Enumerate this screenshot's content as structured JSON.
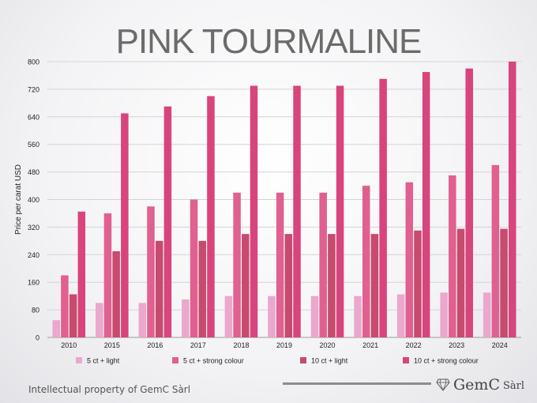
{
  "title": "PINK TOURMALINE",
  "footer": {
    "text": "Intellectual property of GemC Sàrl",
    "logo_name": "GemC",
    "logo_suffix": "Sàrl"
  },
  "chart_data": {
    "type": "bar",
    "ylabel": "Price per carat USD",
    "xlabel": "",
    "ylim": [
      0,
      800
    ],
    "yticks": [
      0,
      80,
      160,
      240,
      320,
      400,
      480,
      560,
      640,
      720,
      800
    ],
    "grid": true,
    "legend_position": "bottom",
    "categories": [
      "2010",
      "2015",
      "2016",
      "2017",
      "2018",
      "2019",
      "2020",
      "2021",
      "2022",
      "2023",
      "2024"
    ],
    "series": [
      {
        "name": "5 ct + light",
        "color": "#e9a8cc",
        "values": [
          50,
          100,
          100,
          110,
          120,
          120,
          120,
          120,
          125,
          130,
          130
        ]
      },
      {
        "name": "5 ct + strong colour",
        "color": "#e0608f",
        "values": [
          180,
          360,
          380,
          400,
          420,
          420,
          420,
          440,
          450,
          470,
          500
        ]
      },
      {
        "name": "10 ct + light",
        "color": "#c64b6e",
        "values": [
          125,
          250,
          280,
          280,
          300,
          300,
          300,
          300,
          310,
          315,
          315
        ]
      },
      {
        "name": "10 ct + strong colour",
        "color": "#d8447c",
        "values": [
          365,
          650,
          670,
          700,
          730,
          730,
          730,
          750,
          770,
          780,
          800
        ]
      }
    ]
  }
}
